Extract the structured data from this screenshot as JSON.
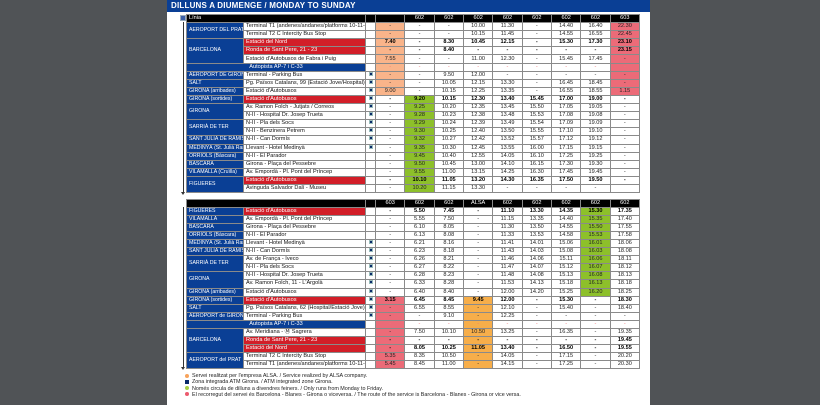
{
  "title": "DILLUNS A DIUMENGE /  MONDAY TO  SUNDAY",
  "colors": {
    "orange": "#f9b48a",
    "red": "#ec6b78",
    "green": "#8dc02a",
    "alsa": "#f7ae4a"
  },
  "top": {
    "line_label": "Línia",
    "headers": [
      "",
      "602",
      "602",
      "602",
      "602",
      "602",
      "602",
      "602",
      "603"
    ],
    "highlights": [
      {
        "col": 0,
        "from": 0,
        "to": 8,
        "color": "orange"
      },
      {
        "col": 8,
        "from": 0,
        "to": 8,
        "color": "red"
      },
      {
        "col": 1,
        "from": 9,
        "to": 20,
        "color": "green"
      }
    ],
    "rows": [
      {
        "station": "AEROPORT DEL PRAT",
        "span": 2,
        "stop": "Terminal T1 (andenes/andanes/platforms 10-11-12)",
        "times": [
          "-",
          "-",
          "-",
          "10.00",
          "11.30",
          "-",
          "14.40",
          "16.40",
          "22.30"
        ]
      },
      {
        "stop": "Terminal T2 C Intercity Bus Stop",
        "times": [
          "-",
          "-",
          "-",
          "10.15",
          "11.45",
          "-",
          "14.55",
          "16.55",
          "22.45"
        ]
      },
      {
        "station": "BARCELONA",
        "span": 3,
        "stop": "Estació del Nord",
        "red": true,
        "bold": true,
        "times": [
          "7.40",
          "-",
          "8.30",
          "10.45",
          "12.15",
          "-",
          "15.30",
          "17.30",
          "23.10"
        ]
      },
      {
        "stop": "Ronda de Sant Pere, 21 - 23",
        "red": true,
        "bold": true,
        "times": [
          "-",
          "-",
          "8.40",
          "-",
          "-",
          "-",
          "-",
          "-",
          "23.15"
        ]
      },
      {
        "stop": "Estació d'Autobusos de Fabra i Puig",
        "times": [
          "7.55",
          "-",
          "-",
          "11.00",
          "12.30",
          "-",
          "15.45",
          "17.45",
          "-"
        ]
      },
      {
        "band": "Autopista AP-7 i C-33",
        "times": [
          "-",
          "-",
          "-",
          "-",
          "-",
          "-",
          "-",
          "-",
          "-"
        ]
      },
      {
        "station": "AEROPORT DE GIRONA",
        "span": 1,
        "stop": "Terminal - Parking Bus",
        "icon": true,
        "times": [
          "-",
          "-",
          "9.50",
          "12.00",
          "-",
          "-",
          "-",
          "-",
          "-"
        ]
      },
      {
        "station": "SALT",
        "span": 1,
        "stop": "Pg. Països Catalans, 99 (Estació Jove/Hospital)",
        "icon": true,
        "times": [
          "-",
          "-",
          "10.05",
          "12.15",
          "13.30",
          "-",
          "16.45",
          "18.45",
          "-"
        ]
      },
      {
        "station": "GIRONA (arribades)",
        "span": 1,
        "stop": "Estació d'Autobusos",
        "icon": true,
        "times": [
          "9.00",
          "-",
          "10.15",
          "12.25",
          "13.35",
          "-",
          "16.55",
          "18.55",
          "1.15"
        ]
      },
      {
        "station": "GIRONA (sortides)",
        "span": 1,
        "stop": "Estació d'Autobusos",
        "red": true,
        "bold": true,
        "icon": true,
        "times": [
          "-",
          "9.20",
          "10.15",
          "12.30",
          "13.40",
          "15.45",
          "17.00",
          "19.00",
          "-"
        ]
      },
      {
        "station": "GIRONA",
        "span": 2,
        "stop": "Av. Ramon Folch - Jutjats / Correos",
        "icon": true,
        "times": [
          "-",
          "9.25",
          "10.20",
          "12.35",
          "13.45",
          "15.50",
          "17.05",
          "19.05",
          "-"
        ]
      },
      {
        "stop": "N-II - Hospital Dr. Josep Trueta",
        "icon": true,
        "times": [
          "-",
          "9.28",
          "10.23",
          "12.38",
          "13.48",
          "15.53",
          "17.08",
          "19.08",
          "-"
        ]
      },
      {
        "station": "SARRIÀ DE TER",
        "span": 2,
        "stop": "N-II - Pla dels Socs",
        "icon": true,
        "times": [
          "-",
          "9.29",
          "10.24",
          "12.39",
          "13.49",
          "15.54",
          "17.09",
          "19.09",
          "-"
        ]
      },
      {
        "stop": "N-II - Benzinera Petrem",
        "icon": true,
        "times": [
          "-",
          "9.30",
          "10.25",
          "12.40",
          "13.50",
          "15.55",
          "17.10",
          "19.10",
          "-"
        ]
      },
      {
        "station": "SANT JULIÀ DE RAMIS",
        "span": 1,
        "stop": "N-II - Can Dormís",
        "icon": true,
        "times": [
          "-",
          "9.32",
          "10.27",
          "12.42",
          "13.52",
          "15.57",
          "17.12",
          "19.12",
          "-"
        ]
      },
      {
        "station": "MEDINYÀ (St. Julià Ramis)",
        "span": 1,
        "stop": "Llevant - Hotel Medinyà",
        "icon": true,
        "times": [
          "-",
          "9.35",
          "10.30",
          "12.45",
          "13.55",
          "16.00",
          "17.15",
          "19.15",
          "-"
        ]
      },
      {
        "station": "ORRIOLS (Bàscara)",
        "span": 1,
        "stop": "N-II - El Parador",
        "times": [
          "-",
          "9.45",
          "10.40",
          "12.55",
          "14.05",
          "16.10",
          "17.25",
          "19.25",
          "-"
        ]
      },
      {
        "station": "BÀSCARA",
        "span": 1,
        "stop": "Girona - Plaça del Pessebre",
        "times": [
          "-",
          "9.50",
          "10.45",
          "13.00",
          "14.10",
          "16.15",
          "17.30",
          "19.30",
          "-"
        ]
      },
      {
        "station": "VILAMALLA (Cruïlla)",
        "span": 1,
        "stop": "Av. Empordà - Pl. Pont del Príncep",
        "times": [
          "-",
          "9.55",
          "11.00",
          "13.15",
          "14.25",
          "16.30",
          "17.45",
          "19.45",
          "-"
        ]
      },
      {
        "station": "FIGUERES",
        "span": 2,
        "stop": "Estació d'Autobusos",
        "red": true,
        "bold": true,
        "times": [
          "-",
          "10.10",
          "11.05",
          "13.20",
          "14.30",
          "16.35",
          "17.50",
          "19.50",
          "-"
        ]
      },
      {
        "stop": "Avinguda Salvador Dalí - Museu",
        "times": [
          "-",
          "10.20",
          "11.15",
          "13.30",
          "-",
          "-",
          "-",
          "-",
          ""
        ]
      }
    ]
  },
  "bottom": {
    "line_label": "",
    "headers": [
      "603",
      "602",
      "602",
      "ALSA",
      "602",
      "602",
      "602",
      "602",
      "602"
    ],
    "highlights": [
      {
        "col": 0,
        "from": 11,
        "to": 19,
        "color": "red"
      },
      {
        "col": 3,
        "from": 11,
        "to": 19,
        "color": "alsa"
      },
      {
        "col": 7,
        "from": 0,
        "to": 10,
        "color": "green"
      }
    ],
    "rows": [
      {
        "station": "FIGUERES",
        "span": 1,
        "stop": "Estació d'Autobusos",
        "red": true,
        "bold": true,
        "times": [
          "-",
          "5.50",
          "7.45",
          "-",
          "11.10",
          "13.30",
          "14.35",
          "15.30",
          "17.35"
        ]
      },
      {
        "station": "VILAMALLA",
        "span": 1,
        "stop": "Av. Empordà - Pl. Pont del Príncep",
        "times": [
          "-",
          "5.55",
          "7.50",
          "-",
          "11.15",
          "13.35",
          "14.40",
          "15.35",
          "17.40"
        ]
      },
      {
        "station": "BÀSCARA",
        "span": 1,
        "stop": "Girona - Plaça del Pessebre",
        "times": [
          "-",
          "6.10",
          "8.05",
          "-",
          "11.30",
          "13.50",
          "14.55",
          "15.50",
          "17.55"
        ]
      },
      {
        "station": "ORRIOLS (Bàscara)",
        "span": 1,
        "stop": "N-II - El Parador",
        "times": [
          "-",
          "6.13",
          "8.08",
          "-",
          "11.33",
          "13.53",
          "14.58",
          "15.53",
          "17.58"
        ]
      },
      {
        "station": "MEDINYÀ (St. Julià Ramis)",
        "span": 1,
        "stop": "Llevant - Hotel Medinyà",
        "icon": true,
        "times": [
          "-",
          "6.21",
          "8.16",
          "-",
          "11.41",
          "14.01",
          "15.06",
          "16.01",
          "18.06"
        ]
      },
      {
        "station": "SANT JULIÀ DE RAMIS",
        "span": 1,
        "stop": "N-II - Can Dormís",
        "icon": true,
        "times": [
          "-",
          "6.23",
          "8.18",
          "-",
          "11.43",
          "14.03",
          "15.08",
          "16.03",
          "18.08"
        ]
      },
      {
        "station": "SARRIÀ DE TER",
        "span": 2,
        "stop": "Av. de França - Iveco",
        "icon": true,
        "times": [
          "-",
          "6.26",
          "8.21",
          "-",
          "11.46",
          "14.06",
          "15.11",
          "16.06",
          "18.11"
        ]
      },
      {
        "stop": "N-II - Pla dels Socs",
        "icon": true,
        "times": [
          "-",
          "6.27",
          "8.22",
          "-",
          "11.47",
          "14.07",
          "15.12",
          "16.07",
          "18.12"
        ]
      },
      {
        "station": "GIRONA",
        "span": 2,
        "stop": "N-II - Hospital Dr. Josep Trueta",
        "icon": true,
        "times": [
          "-",
          "6.28",
          "8.23",
          "-",
          "11.48",
          "14.08",
          "15.13",
          "16.08",
          "18.13"
        ]
      },
      {
        "stop": "Av. Ramon Folch, 11 - L'Argolà",
        "icon": true,
        "times": [
          "-",
          "6.33",
          "8.28",
          "-",
          "11.53",
          "14.13",
          "15.18",
          "16.13",
          "18.18"
        ]
      },
      {
        "station": "GIRONA (arribades)",
        "span": 1,
        "stop": "Estació d'Autobusos",
        "icon": true,
        "times": [
          "-",
          "6.40",
          "8.40",
          "-",
          "12.00",
          "14.20",
          "15.25",
          "16.20",
          "18.25"
        ]
      },
      {
        "station": "GIRONA (sortides)",
        "span": 1,
        "stop": "Estació d'Autobusos",
        "red": true,
        "bold": true,
        "icon": true,
        "times": [
          "3.15",
          "6.45",
          "8.45",
          "9.45",
          "12.00",
          "-",
          "15.30",
          "-",
          "18.30"
        ]
      },
      {
        "station": "SALT",
        "span": 1,
        "stop": "Pg. Països Catalans, 62 (Hospital/Estació Jove)",
        "icon": true,
        "times": [
          "-",
          "6.55",
          "8.55",
          "-",
          "12.10",
          "-",
          "15.40",
          "-",
          "18.40"
        ]
      },
      {
        "station": "AEROPORT de GIRONA",
        "span": 1,
        "stop": "Terminal - Parking Bus",
        "icon": true,
        "times": [
          "-",
          "-",
          "9.10",
          "-",
          "12.25",
          "-",
          "-",
          "-",
          "-"
        ]
      },
      {
        "band": "Autopista AP-7 i C-33",
        "times": [
          "-",
          "-",
          "-",
          "-",
          "-",
          "-",
          "-",
          "-",
          "-"
        ]
      },
      {
        "station": "BARCELONA",
        "span": 3,
        "stop": "Av. Meridiana - Ⓜ Sagrera",
        "times": [
          "-",
          "7.50",
          "10.10",
          "10.50",
          "13.25",
          "-",
          "16.35",
          "-",
          "19.35"
        ]
      },
      {
        "stop": "Ronda de Sant Pere, 21 - 23",
        "red": true,
        "bold": true,
        "times": [
          "-",
          "-",
          "-",
          "-",
          "-",
          "-",
          "-",
          "-",
          "19.45"
        ]
      },
      {
        "stop": "Estació del Nord",
        "red": true,
        "bold": true,
        "times": [
          "-",
          "8.05",
          "10.25",
          "11.05",
          "13.40",
          "-",
          "16.50",
          "-",
          "19.55"
        ]
      },
      {
        "station": "AEROPORT del PRAT",
        "span": 2,
        "stop": "Terminal T2 C Intercity Bus Stop",
        "times": [
          "5.35",
          "8.35",
          "10.50",
          "-",
          "14.05",
          "-",
          "17.15",
          "-",
          "20.20"
        ]
      },
      {
        "stop": "Terminal T1 (andenes/andanes/platforms 10-11-12)",
        "times": [
          "5.45",
          "8.45",
          "11.00",
          "-",
          "14.15",
          "-",
          "17.25",
          "-",
          "20.30"
        ]
      }
    ]
  },
  "legend": [
    {
      "mark": "dot",
      "color": "#f7a35c",
      "text": "Servei realitzat per l'empresa ALSA. / Service realized by ALSA company."
    },
    {
      "mark": "bus",
      "text": "Zona integrada ATM Girona. / ATM integrated zone Girona."
    },
    {
      "mark": "dot",
      "color": "#a8cf45",
      "text": "Només circula de dilluns a divendres feiners. / Only runs from Monday to Friday."
    },
    {
      "mark": "dot",
      "color": "#ec5a6d",
      "text": "El recorregut del servei és Barcelona - Blanes - Girona o viceversa. / The route of the service is Barcelona - Blanes - Girona or vice versa."
    }
  ]
}
